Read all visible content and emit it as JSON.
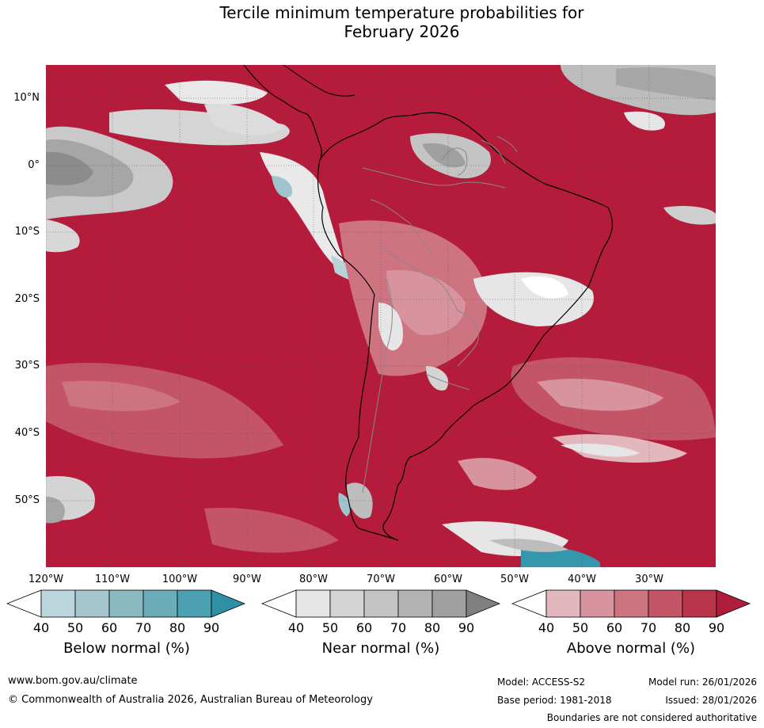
{
  "title": {
    "line1": "Tercile minimum temperature probabilities for",
    "line2": "February 2026"
  },
  "map": {
    "lat_labels": [
      "10°N",
      "0°",
      "10°S",
      "20°S",
      "30°S",
      "40°S",
      "50°S"
    ],
    "lon_labels": [
      "120°W",
      "110°W",
      "100°W",
      "90°W",
      "80°W",
      "70°W",
      "60°W",
      "50°W",
      "40°W",
      "30°W"
    ],
    "colors": {
      "above_dominant": "#b51c3b",
      "near_light": "#e6e6e6",
      "near_mid": "#bdbdbd",
      "near_dark": "#8c8c8c",
      "below_light": "#aacbd3",
      "below_dark": "#3597ac",
      "coastline": "#000000",
      "borders": "#888888"
    }
  },
  "colorbars": [
    {
      "label": "Below normal (%)",
      "ticks": [
        "40",
        "50",
        "60",
        "70",
        "80",
        "90"
      ],
      "colors": [
        "#ffffff",
        "#bcd6dd",
        "#a6c7ce",
        "#8bb9c2",
        "#6cacb8",
        "#4a9fb0",
        "#2f8fa4"
      ]
    },
    {
      "label": "Near normal (%)",
      "ticks": [
        "40",
        "50",
        "60",
        "70",
        "80",
        "90"
      ],
      "colors": [
        "#ffffff",
        "#e6e6e6",
        "#d4d4d4",
        "#c4c4c4",
        "#b3b3b3",
        "#a0a0a0",
        "#808080"
      ]
    },
    {
      "label": "Above normal (%)",
      "ticks": [
        "40",
        "50",
        "60",
        "70",
        "80",
        "90"
      ],
      "colors": [
        "#ffffff",
        "#e2b7bd",
        "#d7949e",
        "#cd7480",
        "#c35566",
        "#b83449",
        "#b01c3c"
      ]
    }
  ],
  "footer": {
    "website": "www.bom.gov.au/climate",
    "copyright": "© Commonwealth of Australia 2026, Australian Bureau of Meteorology",
    "model": "Model: ACCESS-S2",
    "model_run": "Model run: 26/01/2026",
    "base_period": "Base period: 1981-2018",
    "issued": "Issued: 28/01/2026",
    "boundaries": "Boundaries are not considered authoritative"
  }
}
